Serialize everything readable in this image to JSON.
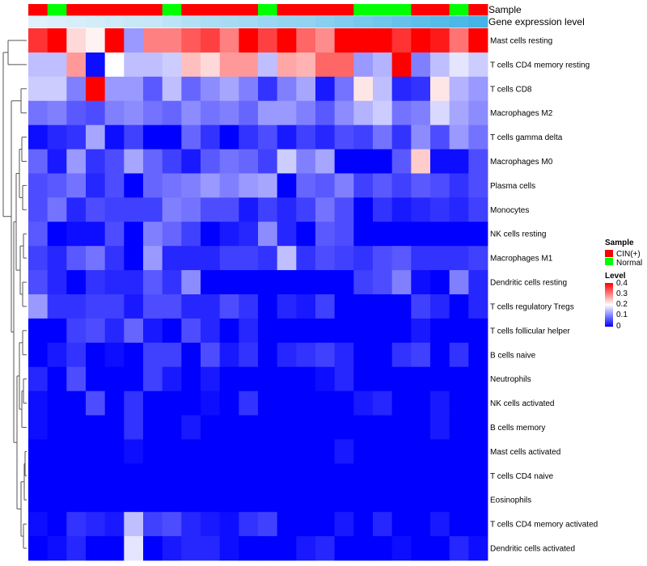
{
  "chart_data": {
    "type": "heatmap",
    "annotation_tracks": [
      "Sample",
      "Gene expression level"
    ],
    "samples": [
      "CIN(+)",
      "Normal",
      "CIN(+)",
      "CIN(+)",
      "CIN(+)",
      "CIN(+)",
      "CIN(+)",
      "Normal",
      "CIN(+)",
      "CIN(+)",
      "CIN(+)",
      "CIN(+)",
      "Normal",
      "CIN(+)",
      "CIN(+)",
      "CIN(+)",
      "CIN(+)",
      "Normal",
      "Normal",
      "Normal",
      "CIN(+)",
      "CIN(+)",
      "Normal",
      "CIN(+)"
    ],
    "gene_expression_level": [
      0.05,
      0.08,
      0.1,
      0.12,
      0.15,
      0.18,
      0.2,
      0.25,
      0.3,
      0.35,
      0.38,
      0.4,
      0.45,
      0.48,
      0.5,
      0.55,
      0.6,
      0.65,
      0.7,
      0.75,
      0.8,
      0.85,
      0.9,
      0.95
    ],
    "rows": [
      "Mast cells resting",
      "T cells CD4 memory resting",
      "T cells CD8",
      "Macrophages M2",
      "T cells gamma delta",
      "Macrophages M0",
      "Plasma cells",
      "Monocytes",
      "NK cells resting",
      "Macrophages M1",
      "Dendritic cells resting",
      "T cells regulatory  Tregs",
      "T cells follicular helper",
      "B cells naive",
      "Neutrophils",
      "NK cells activated",
      "B cells memory",
      "Mast cells activated",
      "T cells CD4 naive",
      "Eosinophils",
      "T cells CD4 memory activated",
      "Dendritic cells activated"
    ],
    "values": [
      [
        0.36,
        0.4,
        0.23,
        0.21,
        0.4,
        0.12,
        0.3,
        0.3,
        0.33,
        0.35,
        0.3,
        0.4,
        0.35,
        0.4,
        0.32,
        0.29,
        0.4,
        0.4,
        0.4,
        0.36,
        0.4,
        0.38,
        0.31,
        0.4
      ],
      [
        0.15,
        0.15,
        0.28,
        0.01,
        0.2,
        0.15,
        0.15,
        0.16,
        0.25,
        0.23,
        0.28,
        0.28,
        0.15,
        0.27,
        0.26,
        0.32,
        0.32,
        0.12,
        0.14,
        0.4,
        0.1,
        0.15,
        0.18,
        0.16
      ],
      [
        0.16,
        0.16,
        0.1,
        0.4,
        0.12,
        0.12,
        0.07,
        0.15,
        0.08,
        0.11,
        0.13,
        0.1,
        0.04,
        0.1,
        0.13,
        0.02,
        0.09,
        0.22,
        0.15,
        0.03,
        0.04,
        0.22,
        0.14,
        0.12
      ],
      [
        0.09,
        0.1,
        0.07,
        0.06,
        0.1,
        0.11,
        0.09,
        0.08,
        0.11,
        0.09,
        0.1,
        0.08,
        0.12,
        0.12,
        0.1,
        0.07,
        0.11,
        0.14,
        0.16,
        0.09,
        0.1,
        0.17,
        0.13,
        0.11
      ],
      [
        0.01,
        0.03,
        0.04,
        0.13,
        0.01,
        0.05,
        0.0,
        0.0,
        0.08,
        0.04,
        0.0,
        0.04,
        0.06,
        0.02,
        0.05,
        0.03,
        0.06,
        0.05,
        0.09,
        0.04,
        0.11,
        0.06,
        0.12,
        0.09
      ],
      [
        0.08,
        0.02,
        0.12,
        0.04,
        0.06,
        0.13,
        0.08,
        0.05,
        0.02,
        0.07,
        0.09,
        0.08,
        0.05,
        0.16,
        0.1,
        0.13,
        0.0,
        0.0,
        0.0,
        0.07,
        0.24,
        0.01,
        0.01,
        0.06
      ],
      [
        0.06,
        0.07,
        0.09,
        0.03,
        0.06,
        0.0,
        0.08,
        0.09,
        0.1,
        0.12,
        0.1,
        0.12,
        0.13,
        0.0,
        0.08,
        0.07,
        0.1,
        0.05,
        0.07,
        0.05,
        0.07,
        0.06,
        0.04,
        0.06
      ],
      [
        0.06,
        0.09,
        0.03,
        0.06,
        0.05,
        0.05,
        0.05,
        0.1,
        0.09,
        0.06,
        0.06,
        0.02,
        0.05,
        0.03,
        0.05,
        0.09,
        0.06,
        0.0,
        0.04,
        0.02,
        0.03,
        0.04,
        0.03,
        0.05
      ],
      [
        0.07,
        0.0,
        0.01,
        0.01,
        0.06,
        0.0,
        0.1,
        0.08,
        0.05,
        0.0,
        0.02,
        0.03,
        0.11,
        0.03,
        0.0,
        0.07,
        0.06,
        0.0,
        0.0,
        0.0,
        0.0,
        0.0,
        0.0,
        0.0
      ],
      [
        0.05,
        0.03,
        0.07,
        0.09,
        0.04,
        0.0,
        0.12,
        0.03,
        0.03,
        0.03,
        0.05,
        0.05,
        0.04,
        0.15,
        0.04,
        0.06,
        0.05,
        0.04,
        0.06,
        0.07,
        0.04,
        0.04,
        0.04,
        0.05
      ],
      [
        0.06,
        0.03,
        0.0,
        0.04,
        0.03,
        0.03,
        0.07,
        0.04,
        0.11,
        0.0,
        0.0,
        0.0,
        0.0,
        0.0,
        0.0,
        0.0,
        0.0,
        0.05,
        0.06,
        0.1,
        0.01,
        0.0,
        0.1,
        0.03
      ],
      [
        0.12,
        0.04,
        0.04,
        0.05,
        0.05,
        0.02,
        0.06,
        0.06,
        0.03,
        0.03,
        0.06,
        0.04,
        0.0,
        0.03,
        0.02,
        0.05,
        0.0,
        0.0,
        0.0,
        0.0,
        0.05,
        0.03,
        0.0,
        0.03
      ],
      [
        0.0,
        0.0,
        0.05,
        0.06,
        0.03,
        0.08,
        0.02,
        0.0,
        0.06,
        0.03,
        0.0,
        0.03,
        0.0,
        0.0,
        0.0,
        0.0,
        0.0,
        0.0,
        0.0,
        0.0,
        0.02,
        0.0,
        0.0,
        0.0
      ],
      [
        0.0,
        0.02,
        0.04,
        0.0,
        0.01,
        0.0,
        0.05,
        0.05,
        0.0,
        0.06,
        0.02,
        0.04,
        0.0,
        0.03,
        0.04,
        0.05,
        0.03,
        0.0,
        0.0,
        0.04,
        0.05,
        0.0,
        0.04,
        0.0
      ],
      [
        0.03,
        0.0,
        0.06,
        0.0,
        0.0,
        0.0,
        0.05,
        0.02,
        0.0,
        0.02,
        0.0,
        0.0,
        0.0,
        0.0,
        0.0,
        0.01,
        0.03,
        0.0,
        0.0,
        0.0,
        0.0,
        0.0,
        0.0,
        0.0
      ],
      [
        0.01,
        0.0,
        0.0,
        0.06,
        0.0,
        0.04,
        0.0,
        0.0,
        0.0,
        0.01,
        0.0,
        0.04,
        0.0,
        0.0,
        0.0,
        0.0,
        0.0,
        0.02,
        0.03,
        0.0,
        0.0,
        0.02,
        0.0,
        0.0
      ],
      [
        0.01,
        0.0,
        0.0,
        0.0,
        0.0,
        0.04,
        0.0,
        0.0,
        0.02,
        0.0,
        0.0,
        0.0,
        0.0,
        0.0,
        0.0,
        0.0,
        0.0,
        0.0,
        0.0,
        0.0,
        0.0,
        0.02,
        0.0,
        0.0
      ],
      [
        0.0,
        0.0,
        0.0,
        0.0,
        0.0,
        0.01,
        0.0,
        0.0,
        0.0,
        0.0,
        0.0,
        0.0,
        0.0,
        0.0,
        0.0,
        0.0,
        0.02,
        0.0,
        0.0,
        0.0,
        0.0,
        0.0,
        0.0,
        0.0
      ],
      [
        0.0,
        0.0,
        0.0,
        0.0,
        0.0,
        0.0,
        0.0,
        0.0,
        0.0,
        0.0,
        0.0,
        0.0,
        0.0,
        0.0,
        0.0,
        0.0,
        0.0,
        0.0,
        0.0,
        0.0,
        0.0,
        0.0,
        0.0,
        0.0
      ],
      [
        0.0,
        0.0,
        0.0,
        0.0,
        0.0,
        0.0,
        0.0,
        0.0,
        0.0,
        0.0,
        0.0,
        0.0,
        0.0,
        0.0,
        0.0,
        0.0,
        0.0,
        0.0,
        0.0,
        0.0,
        0.0,
        0.0,
        0.0,
        0.0
      ],
      [
        0.01,
        0.0,
        0.04,
        0.03,
        0.02,
        0.15,
        0.05,
        0.06,
        0.03,
        0.02,
        0.01,
        0.04,
        0.05,
        0.0,
        0.0,
        0.0,
        0.02,
        0.0,
        0.03,
        0.0,
        0.0,
        0.02,
        0.0,
        0.0
      ],
      [
        0.0,
        0.01,
        0.03,
        0.0,
        0.0,
        0.18,
        0.0,
        0.02,
        0.03,
        0.03,
        0.01,
        0.0,
        0.0,
        0.0,
        0.02,
        0.03,
        0.0,
        0.0,
        0.0,
        0.01,
        0.0,
        0.0,
        0.03,
        0.01
      ]
    ],
    "value_range": [
      0,
      0.4
    ],
    "legend": {
      "sample_title": "Sample",
      "sample_items": [
        {
          "label": "CIN(+)",
          "color": "#FF0000"
        },
        {
          "label": "Normal",
          "color": "#00FF00"
        }
      ],
      "level_title": "Level",
      "level_ticks": [
        "0.4",
        "0.3",
        "0.2",
        "0.1",
        "0"
      ],
      "placement": "right"
    },
    "colors": {
      "low": "#0000FF",
      "mid": "#FFFFFF",
      "high": "#FF0000",
      "expr_low": "#E8F4FB",
      "expr_high": "#3BB1E6"
    }
  }
}
